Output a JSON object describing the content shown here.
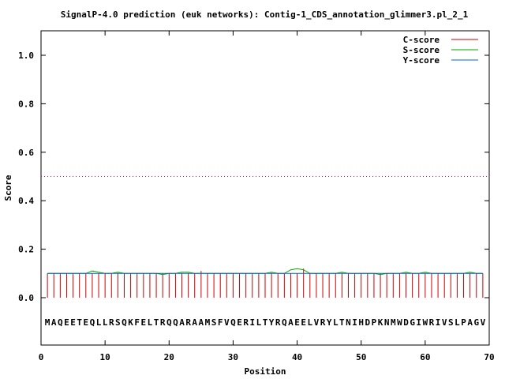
{
  "chart_data": {
    "type": "line",
    "title": "SignalP-4.0 prediction (euk networks): Contig-1_CDS_annotation_glimmer3.pl_2_1",
    "xlabel": "Position",
    "ylabel": "Score",
    "xlim": [
      0,
      70
    ],
    "ylim": [
      -0.2,
      1.1
    ],
    "xticks": [
      0,
      10,
      20,
      30,
      40,
      50,
      60,
      70
    ],
    "xtick_labels": [
      "0",
      "10",
      "20",
      "30",
      "40",
      "50",
      "60",
      "70"
    ],
    "yticks": [
      0.0,
      0.2,
      0.4,
      0.6,
      0.8,
      1.0
    ],
    "ytick_labels": [
      "0.0",
      "0.2",
      "0.4",
      "0.6",
      "0.8",
      "1.0"
    ],
    "legend_position": "top-right",
    "threshold": {
      "value": 0.5,
      "color": "#cc00cc",
      "style": "dotted"
    },
    "sequence": "MAQEETEQLLRSQKFELTRQQARAAMSFVQERILTYRQAEELVRYLTNIHDPKNMWDGIWRIVSLPAGV",
    "series": [
      {
        "name": "C-score",
        "color": "#cc0000",
        "style": "impulses",
        "values": [
          0.1,
          0.1,
          0.1,
          0.1,
          0.1,
          0.1,
          0.1,
          0.1,
          0.1,
          0.1,
          0.1,
          0.1,
          0.1,
          0.1,
          0.1,
          0.1,
          0.1,
          0.1,
          0.1,
          0.1,
          0.1,
          0.1,
          0.1,
          0.1,
          0.11,
          0.1,
          0.1,
          0.1,
          0.1,
          0.1,
          0.1,
          0.1,
          0.1,
          0.1,
          0.1,
          0.1,
          0.1,
          0.1,
          0.1,
          0.1,
          0.12,
          0.1,
          0.1,
          0.1,
          0.1,
          0.1,
          0.1,
          0.1,
          0.1,
          0.1,
          0.1,
          0.1,
          0.1,
          0.1,
          0.1,
          0.1,
          0.1,
          0.1,
          0.1,
          0.1,
          0.1,
          0.1,
          0.1,
          0.1,
          0.1,
          0.1,
          0.1,
          0.1,
          0.1
        ]
      },
      {
        "name": "S-score",
        "color": "#00aa00",
        "style": "line",
        "values": [
          0.1,
          0.1,
          0.1,
          0.1,
          0.1,
          0.1,
          0.1,
          0.11,
          0.105,
          0.1,
          0.1,
          0.105,
          0.1,
          0.1,
          0.1,
          0.1,
          0.1,
          0.1,
          0.095,
          0.1,
          0.1,
          0.105,
          0.105,
          0.1,
          0.1,
          0.1,
          0.1,
          0.1,
          0.1,
          0.1,
          0.1,
          0.1,
          0.1,
          0.1,
          0.1,
          0.105,
          0.1,
          0.1,
          0.115,
          0.12,
          0.115,
          0.1,
          0.1,
          0.1,
          0.1,
          0.1,
          0.105,
          0.1,
          0.1,
          0.1,
          0.1,
          0.1,
          0.095,
          0.1,
          0.1,
          0.1,
          0.105,
          0.1,
          0.1,
          0.105,
          0.1,
          0.1,
          0.1,
          0.1,
          0.1,
          0.1,
          0.105,
          0.1,
          0.1
        ]
      },
      {
        "name": "Y-score",
        "color": "#0066cc",
        "style": "line",
        "values": [
          0.1,
          0.1,
          0.1,
          0.1,
          0.1,
          0.1,
          0.1,
          0.1,
          0.1,
          0.1,
          0.1,
          0.1,
          0.1,
          0.1,
          0.1,
          0.1,
          0.1,
          0.1,
          0.1,
          0.1,
          0.1,
          0.1,
          0.1,
          0.1,
          0.1,
          0.1,
          0.1,
          0.1,
          0.1,
          0.1,
          0.1,
          0.1,
          0.1,
          0.1,
          0.1,
          0.1,
          0.1,
          0.1,
          0.1,
          0.1,
          0.1,
          0.1,
          0.1,
          0.1,
          0.1,
          0.1,
          0.1,
          0.1,
          0.1,
          0.1,
          0.1,
          0.1,
          0.1,
          0.1,
          0.1,
          0.1,
          0.1,
          0.1,
          0.1,
          0.1,
          0.1,
          0.1,
          0.1,
          0.1,
          0.1,
          0.1,
          0.1,
          0.1,
          0.1
        ]
      }
    ]
  }
}
